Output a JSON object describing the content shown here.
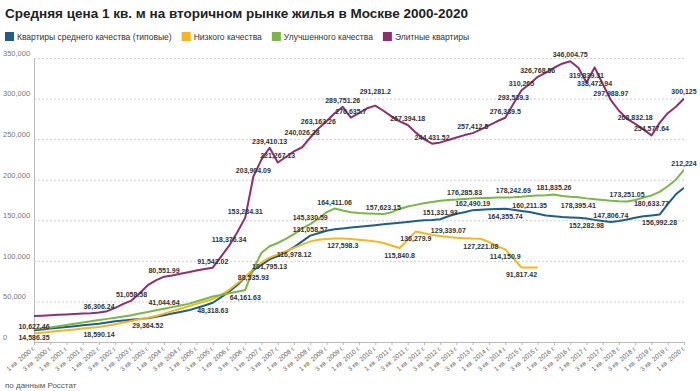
{
  "chart_data": {
    "type": "line",
    "title": "Средняя цена 1 кв. м на вторичном рынке жилья в Москве 2000-2020",
    "source": "по данным Росстат",
    "legend": "top-left",
    "grid": true,
    "ylim": [
      0,
      350000
    ],
    "yticks": [
      0,
      {
        "value": 50000,
        "label": "50,000"
      },
      {
        "value": 100000,
        "label": "100,000"
      },
      {
        "value": 150000,
        "label": "150,000"
      },
      {
        "value": 200000,
        "label": "200,000"
      },
      {
        "value": 250000,
        "label": "250,000"
      },
      {
        "value": 300000,
        "label": "300,000"
      },
      {
        "value": 350000,
        "label": "350,000"
      }
    ],
    "categories": [
      "1 кв. 2000 г.",
      null,
      "3 кв. 2000 г.",
      null,
      "1 кв. 2001 г.",
      null,
      "3 кв. 2001 г.",
      null,
      "1 кв. 2002 г.",
      null,
      "3 кв. 2002 г.",
      null,
      "1 кв. 2003 г.",
      null,
      "3 кв. 2003 г.",
      null,
      "1 кв. 2004 г.",
      null,
      "3 кв. 2004 г.",
      null,
      "1 кв. 2005 г.",
      null,
      "3 кв. 2005 г.",
      null,
      "1 кв. 2006 г.",
      null,
      "3 кв. 2006 г.",
      null,
      "1 кв. 2007 г.",
      null,
      "3 кв. 2007 г.",
      null,
      "1 кв. 2008 г.",
      null,
      "3 кв. 2008 г.",
      null,
      "1 кв. 2009 г.",
      null,
      "3 кв. 2009 г.",
      null,
      "1 кв. 2010 г.",
      null,
      "3 кв. 2010 г.",
      null,
      "1 кв. 2011 г.",
      null,
      "3 кв. 2011 г.",
      null,
      "1 кв. 2012 г.",
      null,
      "3 кв. 2012 г.",
      null,
      "1 кв. 2013 г.",
      null,
      "3 кв. 2013 г.",
      null,
      "1 кв. 2014 г.",
      null,
      "3 кв. 2014 г.",
      null,
      "1 кв. 2015 г.",
      null,
      "3 кв. 2015 г.",
      null,
      "1 кв. 2016 г.",
      null,
      "3 кв. 2016 г.",
      null,
      "1 кв. 2017 г.",
      null,
      "3 кв. 2017 г.",
      null,
      "1 кв. 2018 г.",
      null,
      "3 кв. 2018 г.",
      null,
      "1 кв. 2019 г.",
      null,
      "3 кв. 2019 г.",
      null,
      "1 кв. 2020 г."
    ],
    "series": [
      {
        "name": "Квартиры среднего качества (типовые)",
        "color": "#1d5f8a",
        "values": [
          14586.35,
          15500,
          16500,
          17500,
          18500,
          19500,
          20500,
          21500,
          22500,
          24000,
          25500,
          26500,
          27500,
          28500,
          29364.52,
          31000,
          33000,
          35000,
          37000,
          39000,
          42000,
          45000,
          48318.63,
          55000,
          62000,
          70000,
          80000,
          88535.93,
          95000,
          101795.13,
          106000,
          111000,
          116978.12,
          124000,
          131058.57,
          134000,
          137000,
          139000,
          140000,
          141000,
          142000,
          143000,
          144000,
          145000,
          146000,
          147000,
          148000,
          149000,
          150000,
          150500,
          151331.93,
          155000,
          158000,
          160000,
          162490.19,
          163000,
          163500,
          164000,
          164355.74,
          163000,
          161500,
          160211.35,
          158000,
          156000,
          155000,
          154000,
          153500,
          153000,
          152282.98,
          150500,
          149000,
          147806.74,
          149000,
          151000,
          153000,
          155000,
          156000,
          156992.28,
          170000,
          182000,
          190000
        ],
        "value_labels": [
          "14,586.35",
          null,
          null,
          null,
          null,
          null,
          null,
          null,
          null,
          null,
          null,
          null,
          null,
          null,
          "29,364.52",
          null,
          null,
          null,
          null,
          null,
          null,
          null,
          "48,318.63",
          null,
          null,
          null,
          null,
          "88,535.93",
          null,
          "101,795.13",
          null,
          null,
          "116,978.12",
          null,
          "131,058.57",
          null,
          null,
          null,
          null,
          null,
          null,
          null,
          null,
          null,
          null,
          null,
          null,
          null,
          null,
          null,
          "151,331.93",
          null,
          null,
          null,
          "162,490.19",
          null,
          null,
          null,
          "164,355.74",
          null,
          null,
          "160,211.35",
          null,
          null,
          null,
          null,
          null,
          null,
          "152,282.98",
          null,
          null,
          "147,806.74",
          null,
          null,
          null,
          null,
          null,
          "156,992.28",
          null,
          null,
          null
        ]
      },
      {
        "name": "Низкого качества",
        "color": "#f2b824",
        "values": [
          10627.46,
          11500,
          12500,
          13500,
          14500,
          15500,
          16500,
          17500,
          18590.14,
          20000,
          22000,
          24000,
          26000,
          28000,
          30000,
          32000,
          35000,
          38000,
          41000,
          44000,
          47000,
          50000,
          53000,
          58000,
          64000,
          72000,
          80000,
          90000,
          98000,
          104000,
          108000,
          112000,
          116000,
          120000,
          124000,
          126000,
          127000,
          127500,
          127598.3,
          127000,
          126000,
          125000,
          124000,
          122000,
          119000,
          115840.8,
          126000,
          136279.9,
          134000,
          132000,
          130500,
          129339.07,
          128500,
          128000,
          127500,
          127221.08,
          123000,
          118000,
          114150.9,
          103000,
          91817.42,
          91800,
          91800,
          null,
          null,
          null,
          null,
          null,
          null,
          null,
          null,
          null,
          null,
          null,
          null,
          null,
          null,
          null,
          null,
          null,
          null
        ],
        "value_labels": [
          "10,627.46",
          null,
          null,
          null,
          null,
          null,
          null,
          null,
          "18,590.14",
          null,
          null,
          null,
          null,
          null,
          null,
          null,
          null,
          null,
          null,
          null,
          null,
          null,
          null,
          null,
          null,
          null,
          null,
          null,
          null,
          null,
          null,
          null,
          null,
          null,
          null,
          null,
          null,
          null,
          "127,598.3",
          null,
          null,
          null,
          null,
          null,
          null,
          "115,840.8",
          null,
          "136,279.9",
          null,
          null,
          null,
          "129,339.07",
          null,
          null,
          null,
          "127,221.08",
          null,
          null,
          "114,150.9",
          null,
          "91,817.42",
          null,
          null,
          null,
          null,
          null,
          null,
          null,
          null,
          null,
          null,
          null,
          null,
          null,
          null,
          null,
          null,
          null,
          null,
          null,
          null
        ]
      },
      {
        "name": "Улучшенного качества",
        "color": "#7ab648",
        "values": [
          16000,
          17000,
          18000,
          19500,
          21000,
          22500,
          24000,
          25500,
          27000,
          28500,
          30000,
          31500,
          33000,
          35000,
          37000,
          39000,
          41044.64,
          43000,
          45000,
          47000,
          50000,
          53000,
          56000,
          58000,
          60000,
          62000,
          64161.63,
          90000,
          110000,
          118000,
          122000,
          127000,
          133000,
          140000,
          145330.59,
          152000,
          160000,
          164411.06,
          162000,
          160000,
          159000,
          158500,
          158000,
          157623.15,
          160000,
          164000,
          167000,
          169000,
          171000,
          172500,
          174000,
          175000,
          175500,
          176285.83,
          177000,
          177500,
          177500,
          178000,
          178000,
          178242.69,
          179000,
          180000,
          180500,
          181000,
          181835.26,
          180000,
          179000,
          178395.41,
          177000,
          176000,
          175000,
          174000,
          173500,
          173251.05,
          175000,
          178000,
          180633.77,
          185000,
          192000,
          200000,
          212224
        ],
        "value_labels": [
          null,
          null,
          null,
          null,
          null,
          null,
          null,
          null,
          null,
          null,
          null,
          null,
          null,
          null,
          null,
          null,
          "41,044.64",
          null,
          null,
          null,
          null,
          null,
          null,
          null,
          null,
          null,
          "64,161.63",
          null,
          null,
          null,
          null,
          null,
          null,
          null,
          "145,330.59",
          null,
          null,
          "164,411.06",
          null,
          null,
          null,
          null,
          null,
          "157,623.15",
          null,
          null,
          null,
          null,
          null,
          null,
          null,
          null,
          null,
          "176,285.83",
          null,
          null,
          null,
          null,
          null,
          "178,242.69",
          null,
          null,
          null,
          null,
          "181,835.26",
          null,
          null,
          "178,395.41",
          null,
          null,
          null,
          null,
          null,
          "173,251.05",
          null,
          null,
          "180,633.77",
          null,
          null,
          null,
          "212,224"
        ]
      },
      {
        "name": "Элитные квартиры",
        "color": "#8e2f6f",
        "values": [
          32000,
          32500,
          33000,
          33500,
          34000,
          34500,
          35000,
          35500,
          36306.24,
          38000,
          42000,
          47000,
          51058.58,
          60000,
          70000,
          76000,
          80551.99,
          82000,
          84000,
          86000,
          88000,
          90000,
          91542.02,
          105000,
          118376.34,
          135000,
          153284.31,
          203904.09,
          225000,
          239410.13,
          221267.13,
          228000,
          235000,
          240026.28,
          252000,
          263163.26,
          272000,
          282000,
          289751.26,
          276635.7,
          282000,
          288000,
          291281.2,
          285000,
          278000,
          272000,
          267394.18,
          258000,
          250000,
          244431.52,
          246000,
          249000,
          252000,
          255000,
          257412.5,
          262000,
          267000,
          272000,
          276339.5,
          293539.3,
          310265,
          318000,
          326768.56,
          332000,
          338000,
          343000,
          346004.75,
          338000,
          319839.31,
          338472.94,
          318000,
          297988.97,
          285000,
          275000,
          268832.18,
          262000,
          254577.64,
          270000,
          282000,
          290000,
          300125
        ],
        "value_labels": [
          null,
          null,
          null,
          null,
          null,
          null,
          null,
          null,
          "36,306.24",
          null,
          null,
          null,
          "51,058.58",
          null,
          null,
          null,
          "80,551.99",
          null,
          null,
          null,
          null,
          null,
          "91,542.02",
          null,
          "118,376.34",
          null,
          "153,284.31",
          "203,904.09",
          null,
          "239,410.13",
          "221,267.13",
          null,
          null,
          "240,026.28",
          null,
          "263,163.26",
          null,
          null,
          "289,751.26",
          "276,635.7",
          null,
          null,
          "291,281.2",
          null,
          null,
          null,
          "267,394.18",
          null,
          null,
          "244,431.52",
          null,
          null,
          null,
          null,
          "257,412.5",
          null,
          null,
          null,
          "276,339.5",
          "293,539.3",
          "310,265",
          null,
          "326,768.56",
          null,
          null,
          null,
          "346,004.75",
          null,
          "319,839.31",
          "338,472.94",
          null,
          "297,988.97",
          null,
          null,
          "268,832.18",
          null,
          "254,577.64",
          null,
          null,
          null,
          "300,125"
        ]
      }
    ]
  }
}
